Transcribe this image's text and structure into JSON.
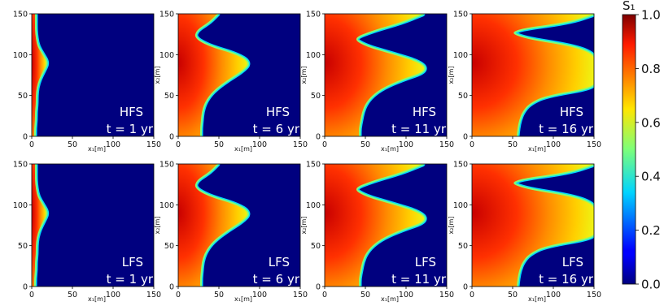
{
  "chart_data": {
    "type": "heatmap",
    "rows": [
      "HFS",
      "LFS"
    ],
    "times": [
      "t = 1 yr",
      "t = 6 yr",
      "t = 11 yr",
      "t = 16 yr"
    ],
    "xlabel": "x₁[m]",
    "ylabel": "x₂[m]",
    "xlim": [
      0,
      150
    ],
    "ylim": [
      0,
      150
    ],
    "xticks": [
      "0",
      "50",
      "100",
      "150"
    ],
    "yticks": [
      "0",
      "50",
      "100",
      "150"
    ],
    "colorbar": {
      "label": "S₁",
      "range": [
        0.0,
        1.0
      ],
      "ticks": [
        "0.0",
        "0.2",
        "0.4",
        "0.6",
        "0.8",
        "1.0"
      ],
      "colormap": "jet"
    },
    "front_profiles": {
      "x2": [
        0,
        10,
        20,
        30,
        40,
        50,
        60,
        70,
        80,
        90,
        100,
        110,
        120,
        130,
        140,
        150
      ],
      "t1": [
        3,
        3,
        4,
        4,
        5,
        5,
        6,
        9,
        14,
        19,
        13,
        7,
        5,
        4,
        4,
        4
      ],
      "t6": [
        27,
        27,
        28,
        29,
        32,
        38,
        48,
        62,
        78,
        88,
        72,
        38,
        20,
        22,
        38,
        48
      ],
      "t11": [
        42,
        42,
        44,
        46,
        50,
        58,
        72,
        95,
        125,
        118,
        85,
        50,
        34,
        60,
        95,
        120
      ],
      "t16": [
        55,
        56,
        58,
        62,
        70,
        90,
        150,
        150,
        150,
        150,
        150,
        125,
        60,
        45,
        120,
        150
      ]
    }
  },
  "panels": [
    {
      "label": "HFS",
      "time": "t = 1 yr",
      "front": "t1"
    },
    {
      "label": "HFS",
      "time": "t = 6 yr",
      "front": "t6"
    },
    {
      "label": "HFS",
      "time": "t = 11 yr",
      "front": "t11"
    },
    {
      "label": "HFS",
      "time": "t = 16 yr",
      "front": "t16"
    },
    {
      "label": "LFS",
      "time": "t = 1 yr",
      "front": "t1"
    },
    {
      "label": "LFS",
      "time": "t = 6 yr",
      "front": "t6"
    },
    {
      "label": "LFS",
      "time": "t = 11 yr",
      "front": "t11"
    },
    {
      "label": "LFS",
      "time": "t = 16 yr",
      "front": "t16"
    }
  ]
}
